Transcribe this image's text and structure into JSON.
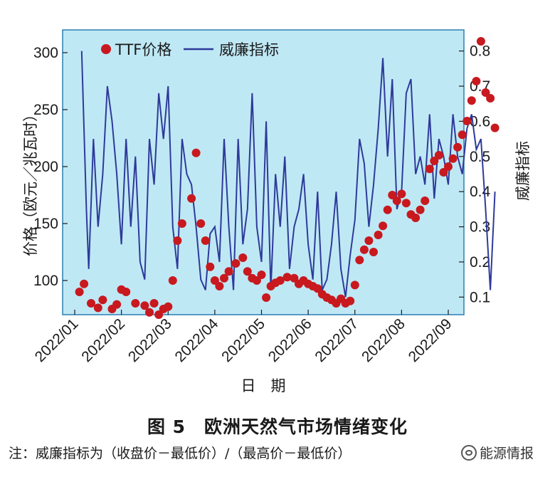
{
  "chart_data": {
    "type": "line",
    "left_axis": {
      "label": "价格（欧元／兆瓦时）",
      "ticks": [
        100,
        150,
        200,
        250,
        300
      ],
      "ylim": [
        70,
        320
      ]
    },
    "right_axis": {
      "label": "威廉指标",
      "ticks": [
        0.1,
        0.2,
        0.3,
        0.4,
        0.5,
        0.6,
        0.7,
        0.8
      ],
      "ylim": [
        0.05,
        0.86
      ]
    },
    "x_axis": {
      "label": "日　期",
      "ticks": [
        "2022/01",
        "2022/02",
        "2022/03",
        "2022/04",
        "2022/05",
        "2022/06",
        "2022/07",
        "2022/08",
        "2022/09"
      ]
    },
    "legend": [
      "TTF价格",
      "威廉指标"
    ],
    "colors": {
      "background": "#bfe8f5",
      "ttf": "#c8191f",
      "williams": "#2e3a9a"
    },
    "series": [
      {
        "name": "TTF价格",
        "kind": "scatter",
        "x": [
          0.1,
          0.2,
          0.35,
          0.5,
          0.6,
          0.8,
          0.9,
          1.0,
          1.1,
          1.3,
          1.5,
          1.6,
          1.7,
          1.8,
          1.9,
          2.0,
          2.1,
          2.2,
          2.3,
          2.5,
          2.6,
          2.7,
          2.8,
          2.9,
          3.0,
          3.1,
          3.2,
          3.3,
          3.45,
          3.6,
          3.7,
          3.8,
          3.9,
          4.0,
          4.1,
          4.2,
          4.3,
          4.4,
          4.55,
          4.7,
          4.8,
          4.9,
          5.0,
          5.1,
          5.2,
          5.3,
          5.4,
          5.5,
          5.6,
          5.7,
          5.8,
          5.9,
          6.0,
          6.1,
          6.2,
          6.3,
          6.4,
          6.5,
          6.6,
          6.7,
          6.8,
          6.9,
          7.0,
          7.1,
          7.2,
          7.3,
          7.4,
          7.5,
          7.6,
          7.7,
          7.8,
          7.9,
          8.0,
          8.1,
          8.2,
          8.3,
          8.4,
          8.5,
          8.6,
          8.7,
          8.8,
          8.9,
          9.0
        ],
        "values": [
          90,
          97,
          80,
          76,
          83,
          75,
          79,
          92,
          90,
          80,
          78,
          72,
          80,
          70,
          75,
          77,
          100,
          135,
          150,
          172,
          212,
          150,
          135,
          112,
          100,
          95,
          102,
          108,
          115,
          120,
          108,
          102,
          100,
          105,
          85,
          95,
          98,
          100,
          103,
          102,
          97,
          100,
          97,
          95,
          93,
          88,
          85,
          83,
          80,
          84,
          80,
          82,
          96,
          118,
          127,
          135,
          125,
          140,
          148,
          162,
          175,
          170,
          176,
          168,
          158,
          155,
          162,
          170,
          198,
          205,
          210,
          195,
          200,
          207,
          217,
          228,
          240,
          258,
          275,
          310,
          265,
          260,
          234
        ]
      },
      {
        "name": "威廉指标",
        "kind": "line",
        "x": [
          0.15,
          0.25,
          0.3,
          0.4,
          0.5,
          0.6,
          0.7,
          0.8,
          0.9,
          1.0,
          1.1,
          1.2,
          1.3,
          1.4,
          1.5,
          1.6,
          1.7,
          1.8,
          1.9,
          2.0,
          2.1,
          2.2,
          2.3,
          2.4,
          2.5,
          2.6,
          2.7,
          2.8,
          2.9,
          3.0,
          3.1,
          3.2,
          3.3,
          3.4,
          3.5,
          3.6,
          3.7,
          3.8,
          3.9,
          4.0,
          4.1,
          4.2,
          4.3,
          4.4,
          4.5,
          4.6,
          4.7,
          4.8,
          4.9,
          5.0,
          5.1,
          5.2,
          5.3,
          5.4,
          5.5,
          5.6,
          5.7,
          5.8,
          5.9,
          6.0,
          6.1,
          6.2,
          6.3,
          6.4,
          6.5,
          6.6,
          6.7,
          6.8,
          6.9,
          7.0,
          7.1,
          7.2,
          7.3,
          7.4,
          7.5,
          7.6,
          7.7,
          7.8,
          7.9,
          8.0,
          8.1,
          8.2,
          8.3,
          8.4,
          8.5,
          8.6,
          8.7,
          8.8,
          8.9,
          9.0
        ],
        "values": [
          0.8,
          0.35,
          0.18,
          0.55,
          0.3,
          0.45,
          0.7,
          0.6,
          0.45,
          0.25,
          0.55,
          0.3,
          0.5,
          0.2,
          0.15,
          0.55,
          0.42,
          0.68,
          0.55,
          0.7,
          0.3,
          0.18,
          0.55,
          0.45,
          0.42,
          0.3,
          0.15,
          0.12,
          0.28,
          0.3,
          0.2,
          0.55,
          0.3,
          0.12,
          0.55,
          0.25,
          0.35,
          0.68,
          0.3,
          0.2,
          0.6,
          0.12,
          0.45,
          0.3,
          0.5,
          0.18,
          0.3,
          0.35,
          0.45,
          0.25,
          0.15,
          0.4,
          0.12,
          0.15,
          0.25,
          0.4,
          0.18,
          0.1,
          0.22,
          0.32,
          0.55,
          0.48,
          0.3,
          0.42,
          0.58,
          0.78,
          0.5,
          0.72,
          0.35,
          0.4,
          0.68,
          0.72,
          0.45,
          0.5,
          0.42,
          0.62,
          0.38,
          0.55,
          0.5,
          0.42,
          0.62,
          0.5,
          0.45,
          0.58,
          0.62,
          0.52,
          0.55,
          0.35,
          0.12,
          0.4
        ]
      }
    ]
  },
  "caption": "图 5　欧洲天然气市场情绪变化",
  "note": "注：威廉指标为（收盘价－最低价）/（最高价－最低价）",
  "watermark": "能源情报"
}
